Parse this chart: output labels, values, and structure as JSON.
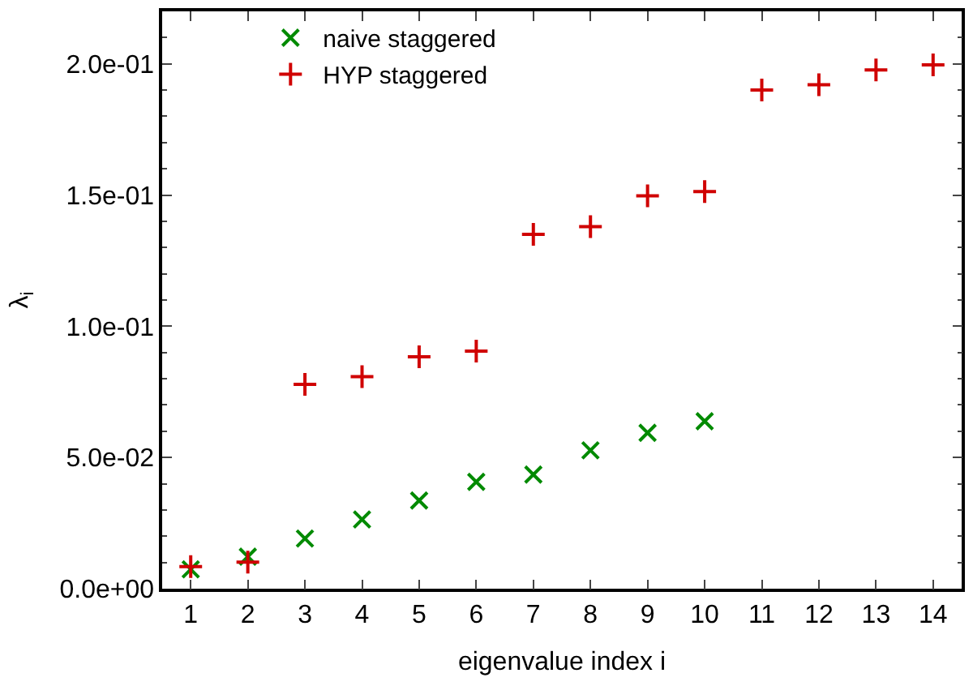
{
  "chart_data": {
    "type": "scatter",
    "xlabel": "eigenvalue index i",
    "ylabel": "λ$_{i}$",
    "x": [
      1,
      2,
      3,
      4,
      5,
      6,
      7,
      8,
      9,
      10,
      11,
      12,
      13,
      14
    ],
    "series": [
      {
        "name": "naive staggered",
        "color": "#008a00",
        "marker": "cross",
        "values": [
          0.0074,
          0.0122,
          0.0191,
          0.0264,
          0.0336,
          0.0407,
          0.0435,
          0.0527,
          0.0594,
          0.0638,
          null,
          null,
          null,
          null
        ]
      },
      {
        "name": "HYP staggered",
        "color": "#d00000",
        "marker": "plus",
        "values": [
          0.0084,
          0.0101,
          0.0779,
          0.0808,
          0.0884,
          0.0905,
          0.135,
          0.138,
          0.1497,
          0.1513,
          0.19,
          0.192,
          0.1977,
          0.1996
        ]
      }
    ],
    "xlim": [
      0.5,
      14.5
    ],
    "xticks": [
      1,
      2,
      3,
      4,
      5,
      6,
      7,
      8,
      9,
      10,
      11,
      12,
      13,
      14
    ],
    "ylim": [
      0,
      0.22
    ],
    "yticks": [
      {
        "value": 0,
        "label": "0.0e+00"
      },
      {
        "value": 0.05,
        "label": "5.0e-02"
      },
      {
        "value": 0.1,
        "label": "1.0e-01"
      },
      {
        "value": 0.15,
        "label": "1.5e-01"
      },
      {
        "value": 0.2,
        "label": "2.0e-01"
      }
    ],
    "legend": "top left"
  }
}
